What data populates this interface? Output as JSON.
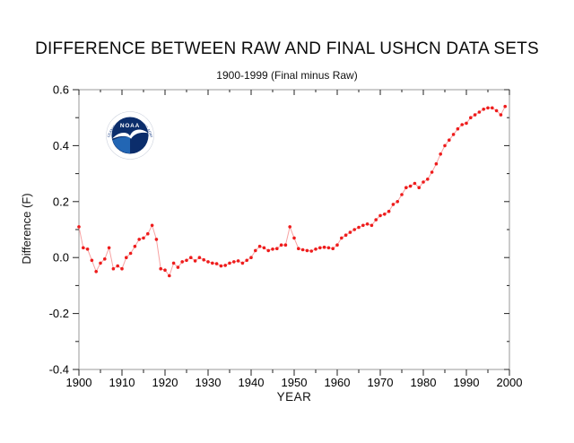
{
  "chart_data": {
    "type": "line",
    "title": "DIFFERENCE BETWEEN RAW AND FINAL USHCN DATA SETS",
    "subtitle": "1900-1999 (Final minus Raw)",
    "xlabel": "YEAR",
    "ylabel": "Difference (F)",
    "xlim": [
      1900,
      2000
    ],
    "ylim": [
      -0.4,
      0.6
    ],
    "x_major_ticks": [
      1900,
      1910,
      1920,
      1930,
      1940,
      1950,
      1960,
      1970,
      1980,
      1990,
      2000
    ],
    "x_minor_step": 5,
    "y_major_ticks": [
      0.6,
      0.4,
      0.2,
      0.0,
      -0.2,
      -0.4
    ],
    "y_tick_labels": [
      "0.6",
      "0.4",
      "0.2",
      "0.0",
      "-0.2",
      "-0.4"
    ],
    "y_minor_step": 0.1,
    "grid": false,
    "legend": null,
    "marker_color": "#ee1c1c",
    "line_color": "#f7a2a2",
    "frame_color": "#999999",
    "tick_color": "#222222",
    "years": [
      1900,
      1901,
      1902,
      1903,
      1904,
      1905,
      1906,
      1907,
      1908,
      1909,
      1910,
      1911,
      1912,
      1913,
      1914,
      1915,
      1916,
      1917,
      1918,
      1919,
      1920,
      1921,
      1922,
      1923,
      1924,
      1925,
      1926,
      1927,
      1928,
      1929,
      1930,
      1931,
      1932,
      1933,
      1934,
      1935,
      1936,
      1937,
      1938,
      1939,
      1940,
      1941,
      1942,
      1943,
      1944,
      1945,
      1946,
      1947,
      1948,
      1949,
      1950,
      1951,
      1952,
      1953,
      1954,
      1955,
      1956,
      1957,
      1958,
      1959,
      1960,
      1961,
      1962,
      1963,
      1964,
      1965,
      1966,
      1967,
      1968,
      1969,
      1970,
      1971,
      1972,
      1973,
      1974,
      1975,
      1976,
      1977,
      1978,
      1979,
      1980,
      1981,
      1982,
      1983,
      1984,
      1985,
      1986,
      1987,
      1988,
      1989,
      1990,
      1991,
      1992,
      1993,
      1994,
      1995,
      1996,
      1997,
      1998,
      1999
    ],
    "values": [
      0.11,
      0.035,
      0.03,
      -0.01,
      -0.05,
      -0.02,
      -0.005,
      0.035,
      -0.04,
      -0.03,
      -0.04,
      0.0,
      0.015,
      0.04,
      0.065,
      0.07,
      0.085,
      0.115,
      0.065,
      -0.04,
      -0.045,
      -0.065,
      -0.02,
      -0.035,
      -0.015,
      -0.01,
      0.0,
      -0.012,
      0.0,
      -0.008,
      -0.015,
      -0.02,
      -0.022,
      -0.03,
      -0.028,
      -0.02,
      -0.015,
      -0.012,
      -0.02,
      -0.01,
      0.0,
      0.025,
      0.04,
      0.035,
      0.025,
      0.03,
      0.032,
      0.045,
      0.045,
      0.11,
      0.07,
      0.032,
      0.028,
      0.025,
      0.023,
      0.03,
      0.035,
      0.037,
      0.035,
      0.032,
      0.045,
      0.07,
      0.08,
      0.09,
      0.1,
      0.108,
      0.115,
      0.12,
      0.115,
      0.135,
      0.15,
      0.155,
      0.165,
      0.19,
      0.2,
      0.225,
      0.25,
      0.255,
      0.265,
      0.25,
      0.27,
      0.28,
      0.305,
      0.335,
      0.37,
      0.4,
      0.42,
      0.44,
      0.46,
      0.475,
      0.48,
      0.5,
      0.51,
      0.52,
      0.53,
      0.535,
      0.535,
      0.525,
      0.51,
      0.54
    ]
  },
  "logo": {
    "acronym": "NOAA",
    "ring_text_top": "NATIONAL OCEANIC AND ATMOSPHERIC ADMINISTRATION",
    "ring_text_bottom": "U.S. DEPARTMENT OF COMMERCE",
    "colors": {
      "navy": "#0b2d6b",
      "sky": "#2266b4",
      "ring_text": "#1d4289",
      "bird": "#ffffff"
    }
  }
}
